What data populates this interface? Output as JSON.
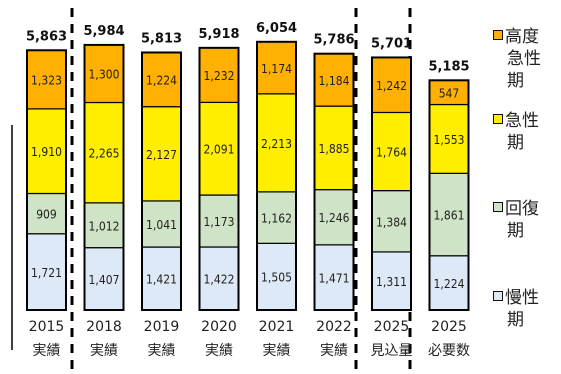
{
  "chart_data": {
    "type": "bar",
    "stacked": true,
    "categories": [
      [
        "2015",
        "実績"
      ],
      [
        "2018",
        "実績"
      ],
      [
        "2019",
        "実績"
      ],
      [
        "2020",
        "実績"
      ],
      [
        "2021",
        "実績"
      ],
      [
        "2022",
        "実績"
      ],
      [
        "2025",
        "見込量"
      ],
      [
        "2025",
        "必要数"
      ]
    ],
    "series": [
      {
        "name": "慢性期",
        "color": "#dde9f6",
        "values": [
          1721,
          1407,
          1421,
          1422,
          1505,
          1471,
          1311,
          1224
        ]
      },
      {
        "name": "回復期",
        "color": "#cfe3c6",
        "values": [
          909,
          1012,
          1041,
          1173,
          1162,
          1246,
          1384,
          1861
        ]
      },
      {
        "name": "急性期",
        "color": "#ffee00",
        "values": [
          1910,
          2265,
          2127,
          2091,
          2213,
          1885,
          1764,
          1553
        ]
      },
      {
        "name": "高度急性期",
        "color": "#ffb000",
        "values": [
          1323,
          1300,
          1224,
          1232,
          1174,
          1184,
          1242,
          547
        ]
      }
    ],
    "totals": [
      5863,
      5984,
      5813,
      5918,
      6054,
      5786,
      5701,
      5185
    ],
    "ylim": [
      0,
      6400
    ],
    "legend_position": "right",
    "grid": false
  },
  "legend": [
    {
      "lines": [
        "高度",
        "急性",
        "期"
      ],
      "color": "#ffb000"
    },
    {
      "lines": [
        "急性",
        "期"
      ],
      "color": "#ffee00"
    },
    {
      "lines": [
        "回復",
        "期"
      ],
      "color": "#cfe3c6"
    },
    {
      "lines": [
        "慢性",
        "期"
      ],
      "color": "#dde9f6"
    }
  ]
}
